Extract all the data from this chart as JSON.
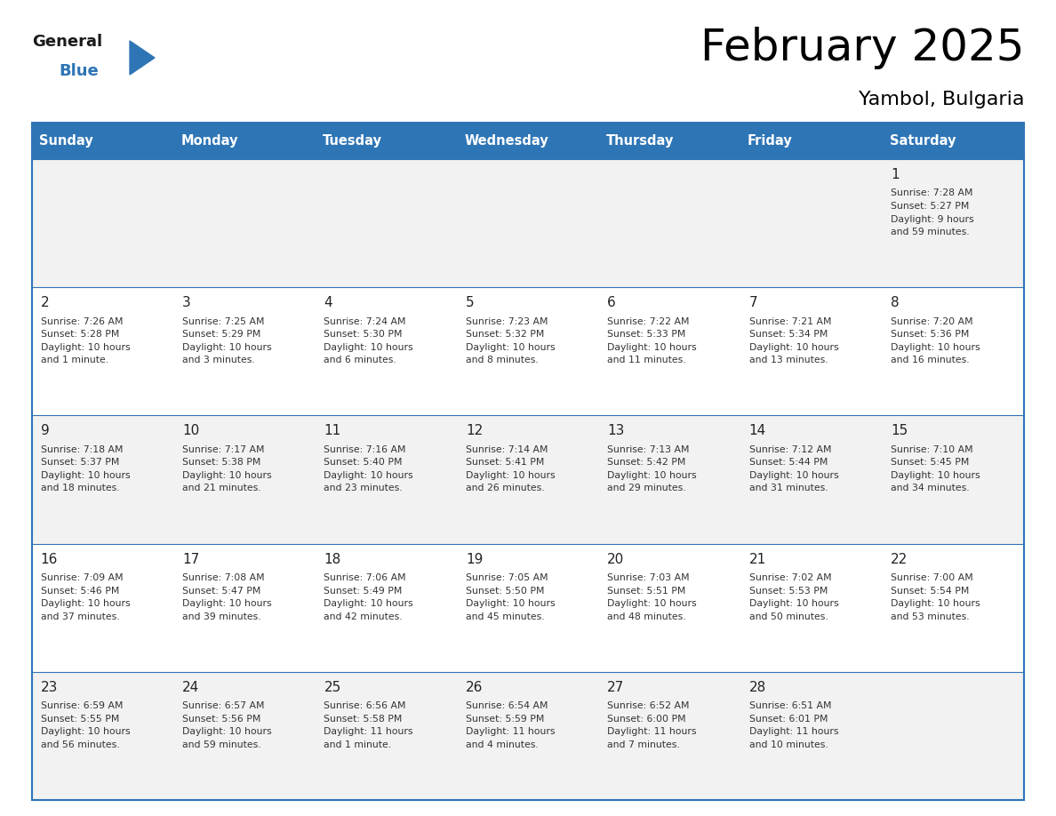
{
  "title": "February 2025",
  "subtitle": "Yambol, Bulgaria",
  "header_color": "#2E75B6",
  "header_text_color": "#FFFFFF",
  "row0_bg": "#F2F2F2",
  "row_bg_odd": "#FFFFFF",
  "row_bg_even": "#F2F2F2",
  "border_color": "#2E75B6",
  "text_color": "#333333",
  "day_num_color": "#222222",
  "day_headers": [
    "Sunday",
    "Monday",
    "Tuesday",
    "Wednesday",
    "Thursday",
    "Friday",
    "Saturday"
  ],
  "days": [
    {
      "day": 1,
      "col": 6,
      "row": 0,
      "sunrise": "7:28 AM",
      "sunset": "5:27 PM",
      "daylight_hours": 9,
      "daylight_minutes": 59
    },
    {
      "day": 2,
      "col": 0,
      "row": 1,
      "sunrise": "7:26 AM",
      "sunset": "5:28 PM",
      "daylight_hours": 10,
      "daylight_minutes": 1
    },
    {
      "day": 3,
      "col": 1,
      "row": 1,
      "sunrise": "7:25 AM",
      "sunset": "5:29 PM",
      "daylight_hours": 10,
      "daylight_minutes": 3
    },
    {
      "day": 4,
      "col": 2,
      "row": 1,
      "sunrise": "7:24 AM",
      "sunset": "5:30 PM",
      "daylight_hours": 10,
      "daylight_minutes": 6
    },
    {
      "day": 5,
      "col": 3,
      "row": 1,
      "sunrise": "7:23 AM",
      "sunset": "5:32 PM",
      "daylight_hours": 10,
      "daylight_minutes": 8
    },
    {
      "day": 6,
      "col": 4,
      "row": 1,
      "sunrise": "7:22 AM",
      "sunset": "5:33 PM",
      "daylight_hours": 10,
      "daylight_minutes": 11
    },
    {
      "day": 7,
      "col": 5,
      "row": 1,
      "sunrise": "7:21 AM",
      "sunset": "5:34 PM",
      "daylight_hours": 10,
      "daylight_minutes": 13
    },
    {
      "day": 8,
      "col": 6,
      "row": 1,
      "sunrise": "7:20 AM",
      "sunset": "5:36 PM",
      "daylight_hours": 10,
      "daylight_minutes": 16
    },
    {
      "day": 9,
      "col": 0,
      "row": 2,
      "sunrise": "7:18 AM",
      "sunset": "5:37 PM",
      "daylight_hours": 10,
      "daylight_minutes": 18
    },
    {
      "day": 10,
      "col": 1,
      "row": 2,
      "sunrise": "7:17 AM",
      "sunset": "5:38 PM",
      "daylight_hours": 10,
      "daylight_minutes": 21
    },
    {
      "day": 11,
      "col": 2,
      "row": 2,
      "sunrise": "7:16 AM",
      "sunset": "5:40 PM",
      "daylight_hours": 10,
      "daylight_minutes": 23
    },
    {
      "day": 12,
      "col": 3,
      "row": 2,
      "sunrise": "7:14 AM",
      "sunset": "5:41 PM",
      "daylight_hours": 10,
      "daylight_minutes": 26
    },
    {
      "day": 13,
      "col": 4,
      "row": 2,
      "sunrise": "7:13 AM",
      "sunset": "5:42 PM",
      "daylight_hours": 10,
      "daylight_minutes": 29
    },
    {
      "day": 14,
      "col": 5,
      "row": 2,
      "sunrise": "7:12 AM",
      "sunset": "5:44 PM",
      "daylight_hours": 10,
      "daylight_minutes": 31
    },
    {
      "day": 15,
      "col": 6,
      "row": 2,
      "sunrise": "7:10 AM",
      "sunset": "5:45 PM",
      "daylight_hours": 10,
      "daylight_minutes": 34
    },
    {
      "day": 16,
      "col": 0,
      "row": 3,
      "sunrise": "7:09 AM",
      "sunset": "5:46 PM",
      "daylight_hours": 10,
      "daylight_minutes": 37
    },
    {
      "day": 17,
      "col": 1,
      "row": 3,
      "sunrise": "7:08 AM",
      "sunset": "5:47 PM",
      "daylight_hours": 10,
      "daylight_minutes": 39
    },
    {
      "day": 18,
      "col": 2,
      "row": 3,
      "sunrise": "7:06 AM",
      "sunset": "5:49 PM",
      "daylight_hours": 10,
      "daylight_minutes": 42
    },
    {
      "day": 19,
      "col": 3,
      "row": 3,
      "sunrise": "7:05 AM",
      "sunset": "5:50 PM",
      "daylight_hours": 10,
      "daylight_minutes": 45
    },
    {
      "day": 20,
      "col": 4,
      "row": 3,
      "sunrise": "7:03 AM",
      "sunset": "5:51 PM",
      "daylight_hours": 10,
      "daylight_minutes": 48
    },
    {
      "day": 21,
      "col": 5,
      "row": 3,
      "sunrise": "7:02 AM",
      "sunset": "5:53 PM",
      "daylight_hours": 10,
      "daylight_minutes": 50
    },
    {
      "day": 22,
      "col": 6,
      "row": 3,
      "sunrise": "7:00 AM",
      "sunset": "5:54 PM",
      "daylight_hours": 10,
      "daylight_minutes": 53
    },
    {
      "day": 23,
      "col": 0,
      "row": 4,
      "sunrise": "6:59 AM",
      "sunset": "5:55 PM",
      "daylight_hours": 10,
      "daylight_minutes": 56
    },
    {
      "day": 24,
      "col": 1,
      "row": 4,
      "sunrise": "6:57 AM",
      "sunset": "5:56 PM",
      "daylight_hours": 10,
      "daylight_minutes": 59
    },
    {
      "day": 25,
      "col": 2,
      "row": 4,
      "sunrise": "6:56 AM",
      "sunset": "5:58 PM",
      "daylight_hours": 11,
      "daylight_minutes": 1
    },
    {
      "day": 26,
      "col": 3,
      "row": 4,
      "sunrise": "6:54 AM",
      "sunset": "5:59 PM",
      "daylight_hours": 11,
      "daylight_minutes": 4
    },
    {
      "day": 27,
      "col": 4,
      "row": 4,
      "sunrise": "6:52 AM",
      "sunset": "6:00 PM",
      "daylight_hours": 11,
      "daylight_minutes": 7
    },
    {
      "day": 28,
      "col": 5,
      "row": 4,
      "sunrise": "6:51 AM",
      "sunset": "6:01 PM",
      "daylight_hours": 11,
      "daylight_minutes": 10
    }
  ],
  "num_rows": 5,
  "num_cols": 7,
  "fig_width": 11.88,
  "fig_height": 9.18,
  "logo_text_general": "General",
  "logo_text_blue": "Blue",
  "logo_triangle_color": "#2E75B6",
  "logo_text_color": "#1a1a1a"
}
